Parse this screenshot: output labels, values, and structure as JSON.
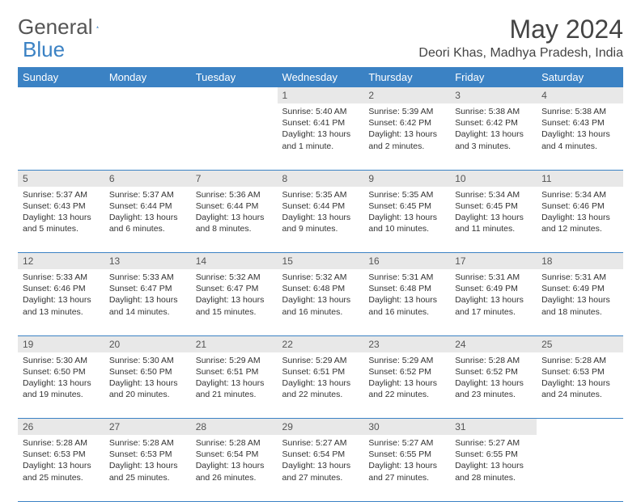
{
  "logo": {
    "text1": "General",
    "text2": "Blue"
  },
  "title": "May 2024",
  "location": "Deori Khas, Madhya Pradesh, India",
  "colors": {
    "header_bg": "#3b82c4",
    "header_text": "#ffffff",
    "daynum_bg": "#e8e8e8",
    "border": "#3b82c4",
    "text": "#333333",
    "background": "#ffffff"
  },
  "weekdays": [
    "Sunday",
    "Monday",
    "Tuesday",
    "Wednesday",
    "Thursday",
    "Friday",
    "Saturday"
  ],
  "weeks": [
    [
      {
        "day": "",
        "lines": [
          "",
          "",
          "",
          ""
        ]
      },
      {
        "day": "",
        "lines": [
          "",
          "",
          "",
          ""
        ]
      },
      {
        "day": "",
        "lines": [
          "",
          "",
          "",
          ""
        ]
      },
      {
        "day": "1",
        "lines": [
          "Sunrise: 5:40 AM",
          "Sunset: 6:41 PM",
          "Daylight: 13 hours",
          "and 1 minute."
        ]
      },
      {
        "day": "2",
        "lines": [
          "Sunrise: 5:39 AM",
          "Sunset: 6:42 PM",
          "Daylight: 13 hours",
          "and 2 minutes."
        ]
      },
      {
        "day": "3",
        "lines": [
          "Sunrise: 5:38 AM",
          "Sunset: 6:42 PM",
          "Daylight: 13 hours",
          "and 3 minutes."
        ]
      },
      {
        "day": "4",
        "lines": [
          "Sunrise: 5:38 AM",
          "Sunset: 6:43 PM",
          "Daylight: 13 hours",
          "and 4 minutes."
        ]
      }
    ],
    [
      {
        "day": "5",
        "lines": [
          "Sunrise: 5:37 AM",
          "Sunset: 6:43 PM",
          "Daylight: 13 hours",
          "and 5 minutes."
        ]
      },
      {
        "day": "6",
        "lines": [
          "Sunrise: 5:37 AM",
          "Sunset: 6:44 PM",
          "Daylight: 13 hours",
          "and 6 minutes."
        ]
      },
      {
        "day": "7",
        "lines": [
          "Sunrise: 5:36 AM",
          "Sunset: 6:44 PM",
          "Daylight: 13 hours",
          "and 8 minutes."
        ]
      },
      {
        "day": "8",
        "lines": [
          "Sunrise: 5:35 AM",
          "Sunset: 6:44 PM",
          "Daylight: 13 hours",
          "and 9 minutes."
        ]
      },
      {
        "day": "9",
        "lines": [
          "Sunrise: 5:35 AM",
          "Sunset: 6:45 PM",
          "Daylight: 13 hours",
          "and 10 minutes."
        ]
      },
      {
        "day": "10",
        "lines": [
          "Sunrise: 5:34 AM",
          "Sunset: 6:45 PM",
          "Daylight: 13 hours",
          "and 11 minutes."
        ]
      },
      {
        "day": "11",
        "lines": [
          "Sunrise: 5:34 AM",
          "Sunset: 6:46 PM",
          "Daylight: 13 hours",
          "and 12 minutes."
        ]
      }
    ],
    [
      {
        "day": "12",
        "lines": [
          "Sunrise: 5:33 AM",
          "Sunset: 6:46 PM",
          "Daylight: 13 hours",
          "and 13 minutes."
        ]
      },
      {
        "day": "13",
        "lines": [
          "Sunrise: 5:33 AM",
          "Sunset: 6:47 PM",
          "Daylight: 13 hours",
          "and 14 minutes."
        ]
      },
      {
        "day": "14",
        "lines": [
          "Sunrise: 5:32 AM",
          "Sunset: 6:47 PM",
          "Daylight: 13 hours",
          "and 15 minutes."
        ]
      },
      {
        "day": "15",
        "lines": [
          "Sunrise: 5:32 AM",
          "Sunset: 6:48 PM",
          "Daylight: 13 hours",
          "and 16 minutes."
        ]
      },
      {
        "day": "16",
        "lines": [
          "Sunrise: 5:31 AM",
          "Sunset: 6:48 PM",
          "Daylight: 13 hours",
          "and 16 minutes."
        ]
      },
      {
        "day": "17",
        "lines": [
          "Sunrise: 5:31 AM",
          "Sunset: 6:49 PM",
          "Daylight: 13 hours",
          "and 17 minutes."
        ]
      },
      {
        "day": "18",
        "lines": [
          "Sunrise: 5:31 AM",
          "Sunset: 6:49 PM",
          "Daylight: 13 hours",
          "and 18 minutes."
        ]
      }
    ],
    [
      {
        "day": "19",
        "lines": [
          "Sunrise: 5:30 AM",
          "Sunset: 6:50 PM",
          "Daylight: 13 hours",
          "and 19 minutes."
        ]
      },
      {
        "day": "20",
        "lines": [
          "Sunrise: 5:30 AM",
          "Sunset: 6:50 PM",
          "Daylight: 13 hours",
          "and 20 minutes."
        ]
      },
      {
        "day": "21",
        "lines": [
          "Sunrise: 5:29 AM",
          "Sunset: 6:51 PM",
          "Daylight: 13 hours",
          "and 21 minutes."
        ]
      },
      {
        "day": "22",
        "lines": [
          "Sunrise: 5:29 AM",
          "Sunset: 6:51 PM",
          "Daylight: 13 hours",
          "and 22 minutes."
        ]
      },
      {
        "day": "23",
        "lines": [
          "Sunrise: 5:29 AM",
          "Sunset: 6:52 PM",
          "Daylight: 13 hours",
          "and 22 minutes."
        ]
      },
      {
        "day": "24",
        "lines": [
          "Sunrise: 5:28 AM",
          "Sunset: 6:52 PM",
          "Daylight: 13 hours",
          "and 23 minutes."
        ]
      },
      {
        "day": "25",
        "lines": [
          "Sunrise: 5:28 AM",
          "Sunset: 6:53 PM",
          "Daylight: 13 hours",
          "and 24 minutes."
        ]
      }
    ],
    [
      {
        "day": "26",
        "lines": [
          "Sunrise: 5:28 AM",
          "Sunset: 6:53 PM",
          "Daylight: 13 hours",
          "and 25 minutes."
        ]
      },
      {
        "day": "27",
        "lines": [
          "Sunrise: 5:28 AM",
          "Sunset: 6:53 PM",
          "Daylight: 13 hours",
          "and 25 minutes."
        ]
      },
      {
        "day": "28",
        "lines": [
          "Sunrise: 5:28 AM",
          "Sunset: 6:54 PM",
          "Daylight: 13 hours",
          "and 26 minutes."
        ]
      },
      {
        "day": "29",
        "lines": [
          "Sunrise: 5:27 AM",
          "Sunset: 6:54 PM",
          "Daylight: 13 hours",
          "and 27 minutes."
        ]
      },
      {
        "day": "30",
        "lines": [
          "Sunrise: 5:27 AM",
          "Sunset: 6:55 PM",
          "Daylight: 13 hours",
          "and 27 minutes."
        ]
      },
      {
        "day": "31",
        "lines": [
          "Sunrise: 5:27 AM",
          "Sunset: 6:55 PM",
          "Daylight: 13 hours",
          "and 28 minutes."
        ]
      },
      {
        "day": "",
        "lines": [
          "",
          "",
          "",
          ""
        ]
      }
    ]
  ]
}
